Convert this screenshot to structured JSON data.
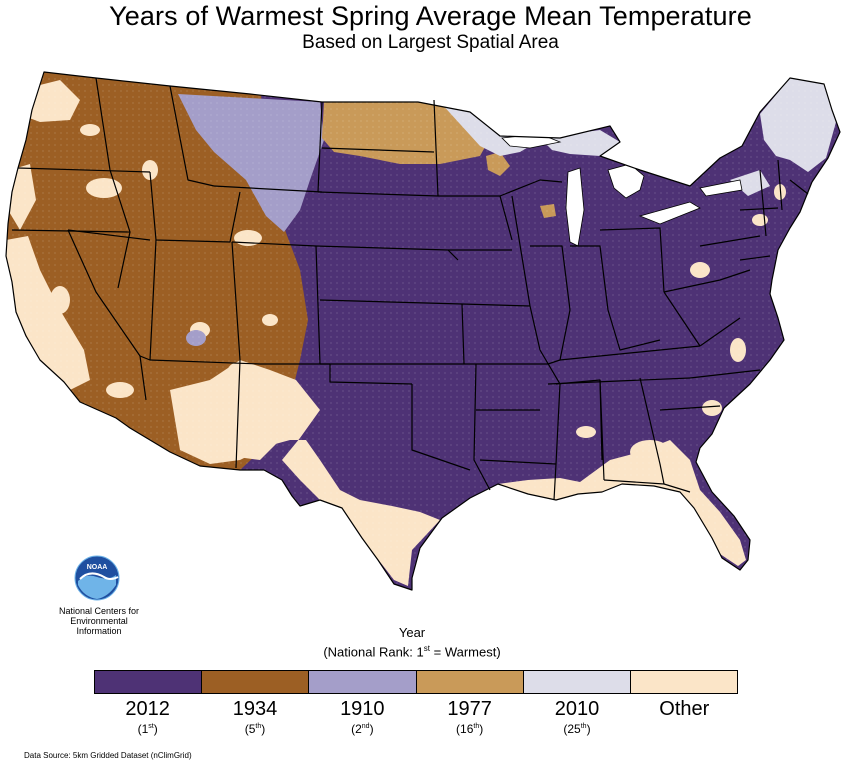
{
  "title": "Years of Warmest Spring Average Mean Temperature",
  "subtitle": "Based on Largest Spatial Area",
  "logo": {
    "name": "noaa-logo",
    "text": "NOAA",
    "caption_line1": "National Centers for",
    "caption_line2": "Environmental",
    "caption_line3": "Information"
  },
  "legend": {
    "title": "Year",
    "rank_prefix": "(National Rank: 1",
    "rank_sup": "st",
    "rank_suffix": " = Warmest)",
    "items": [
      {
        "year": "2012",
        "rank": "1",
        "suffix": "st",
        "color": "#4e3275"
      },
      {
        "year": "1934",
        "rank": "5",
        "suffix": "th",
        "color": "#9c5f24"
      },
      {
        "year": "1910",
        "rank": "2",
        "suffix": "nd",
        "color": "#a49ec9"
      },
      {
        "year": "1977",
        "rank": "16",
        "suffix": "th",
        "color": "#c99a59"
      },
      {
        "year": "2010",
        "rank": "25",
        "suffix": "th",
        "color": "#dddde9"
      },
      {
        "year": "Other",
        "rank": "",
        "suffix": "",
        "color": "#fbe5c8"
      }
    ]
  },
  "colors": {
    "state_border": "#000000",
    "water": "#ffffff"
  },
  "data_source": "Data Source: 5km Gridded Dataset (nClimGrid)"
}
